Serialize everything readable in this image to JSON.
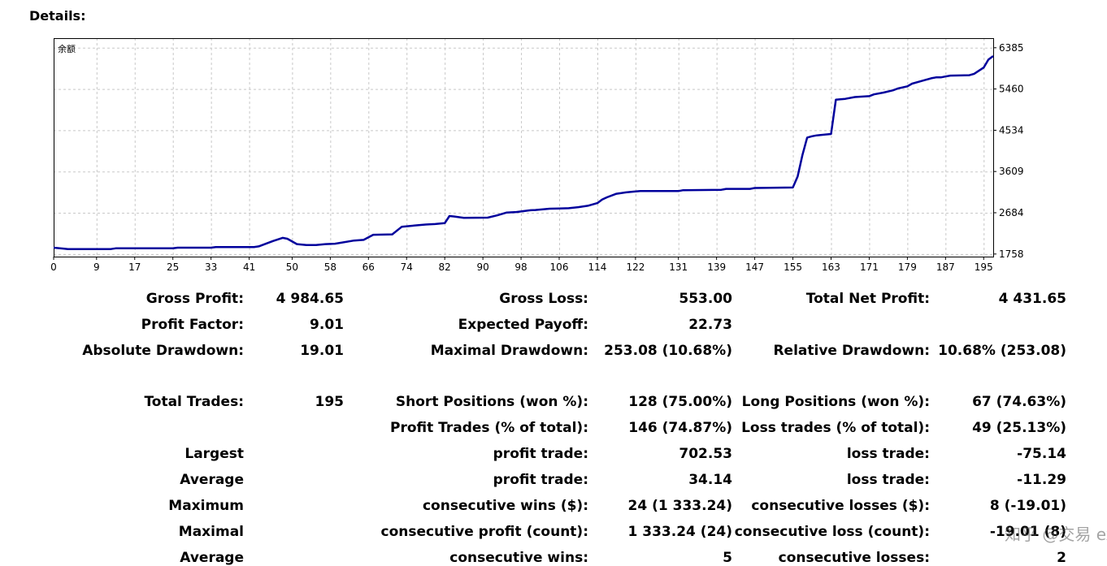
{
  "header": {
    "title": "Details:"
  },
  "chart_data": {
    "type": "line",
    "title": "",
    "legend_label": "余额",
    "xlabel": "",
    "ylabel": "",
    "x_ticks": [
      0,
      9,
      17,
      25,
      33,
      41,
      50,
      58,
      66,
      74,
      82,
      90,
      98,
      106,
      114,
      122,
      131,
      139,
      147,
      155,
      163,
      171,
      179,
      187,
      195
    ],
    "y_ticks": [
      1758,
      2684,
      3609,
      4534,
      5460,
      6385
    ],
    "xlim": [
      0,
      197
    ],
    "ylim": [
      1700,
      6600
    ],
    "grid": true,
    "line_color": "#00009c",
    "series": [
      {
        "x": [
          0,
          2,
          3,
          12,
          13,
          25,
          26,
          33,
          34,
          42,
          43,
          46,
          48,
          49,
          51,
          53,
          55,
          57,
          59,
          63,
          65,
          67,
          71,
          73,
          75,
          78,
          80,
          82,
          83,
          84,
          86,
          91,
          93,
          95,
          97,
          100,
          101,
          104,
          106,
          108,
          110,
          112,
          114,
          115,
          116,
          118,
          120,
          122,
          123,
          131,
          132,
          140,
          141,
          146,
          147,
          155,
          156,
          157,
          158,
          159,
          160,
          163,
          164,
          165,
          166,
          168,
          171,
          172,
          174,
          176,
          177,
          179,
          180,
          182,
          183,
          184,
          185,
          186,
          187,
          188,
          192,
          193,
          195,
          196,
          197
        ],
        "y": [
          1900,
          1880,
          1870,
          1870,
          1885,
          1885,
          1900,
          1900,
          1915,
          1915,
          1930,
          2050,
          2120,
          2100,
          1980,
          1960,
          1960,
          1980,
          1990,
          2060,
          2075,
          2190,
          2200,
          2370,
          2390,
          2420,
          2430,
          2450,
          2610,
          2600,
          2570,
          2575,
          2625,
          2690,
          2700,
          2740,
          2745,
          2775,
          2780,
          2785,
          2810,
          2840,
          2900,
          2980,
          3030,
          3110,
          3140,
          3160,
          3170,
          3170,
          3190,
          3200,
          3220,
          3220,
          3240,
          3250,
          3500,
          3980,
          4370,
          4400,
          4420,
          4450,
          5220,
          5230,
          5240,
          5280,
          5300,
          5340,
          5380,
          5430,
          5470,
          5520,
          5580,
          5640,
          5670,
          5700,
          5720,
          5720,
          5740,
          5760,
          5770,
          5800,
          5940,
          6120,
          6200
        ]
      }
    ]
  },
  "stats": {
    "gross_profit_label": "Gross Profit:",
    "gross_profit": "4 984.65",
    "gross_loss_label": "Gross Loss:",
    "gross_loss": "553.00",
    "total_net_profit_label": "Total Net Profit:",
    "total_net_profit": "4 431.65",
    "profit_factor_label": "Profit Factor:",
    "profit_factor": "9.01",
    "expected_payoff_label": "Expected Payoff:",
    "expected_payoff": "22.73",
    "absolute_drawdown_label": "Absolute Drawdown:",
    "absolute_drawdown": "19.01",
    "maximal_drawdown_label": "Maximal Drawdown:",
    "maximal_drawdown": "253.08 (10.68%)",
    "relative_drawdown_label": "Relative Drawdown:",
    "relative_drawdown": "10.68% (253.08)",
    "total_trades_label": "Total Trades:",
    "total_trades": "195",
    "short_positions_label": "Short Positions (won %):",
    "short_positions": "128 (75.00%)",
    "long_positions_label": "Long Positions (won %):",
    "long_positions": "67 (74.63%)",
    "profit_trades_label": "Profit Trades (% of total):",
    "profit_trades": "146 (74.87%)",
    "loss_trades_label": "Loss trades (% of total):",
    "loss_trades": "49 (25.13%)",
    "largest_label": "Largest",
    "largest_profit_label": "profit trade:",
    "largest_profit": "702.53",
    "largest_loss_label": "loss trade:",
    "largest_loss": "-75.14",
    "average_label": "Average",
    "average_profit_label": "profit trade:",
    "average_profit": "34.14",
    "average_loss_label": "loss trade:",
    "average_loss": "-11.29",
    "maximum_label": "Maximum",
    "max_cons_wins_label": "consecutive wins ($):",
    "max_cons_wins": "24 (1 333.24)",
    "max_cons_losses_label": "consecutive losses ($):",
    "max_cons_losses": "8 (-19.01)",
    "maximal_label": "Maximal",
    "maximal_cons_profit_label": "consecutive profit (count):",
    "maximal_cons_profit": "1 333.24 (24)",
    "maximal_cons_loss_label": "consecutive loss (count):",
    "maximal_cons_loss": "-19.01 (8)",
    "average2_label": "Average",
    "avg_cons_wins_label": "consecutive wins:",
    "avg_cons_wins": "5",
    "avg_cons_losses_label": "consecutive losses:",
    "avg_cons_losses": "2"
  },
  "watermark": {
    "text": "知乎 @交易 ex"
  }
}
